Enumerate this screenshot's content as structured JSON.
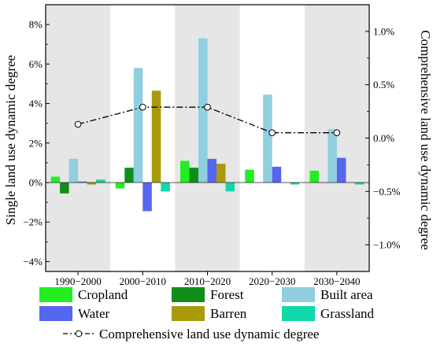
{
  "chart_data": {
    "type": "bar",
    "categories": [
      "1990−2000",
      "2000−2010",
      "2010−2020",
      "2020−2030",
      "2030−2040"
    ],
    "shaded_periods": [
      0,
      2,
      4
    ],
    "series": [
      {
        "name": "Cropland",
        "color": "#22ee22",
        "values": [
          0.3,
          -0.3,
          1.1,
          0.65,
          0.6
        ]
      },
      {
        "name": "Forest",
        "color": "#0f8f1a",
        "values": [
          -0.55,
          0.75,
          0.75,
          0.0,
          0.0
        ]
      },
      {
        "name": "Built area",
        "color": "#8fcfdf",
        "values": [
          1.2,
          5.8,
          7.3,
          4.45,
          2.7
        ]
      },
      {
        "name": "Water",
        "color": "#5566f0",
        "values": [
          0.05,
          -1.45,
          1.2,
          0.8,
          1.25
        ]
      },
      {
        "name": "Barren",
        "color": "#aa9a0a",
        "values": [
          -0.1,
          4.65,
          0.95,
          0.0,
          0.0
        ]
      },
      {
        "name": "Grassland",
        "color": "#10d8a8",
        "values": [
          0.15,
          -0.45,
          -0.45,
          -0.1,
          -0.1
        ]
      }
    ],
    "line_series": {
      "name": "Comprehensive land use dynamic degree",
      "values": [
        0.13,
        0.29,
        0.29,
        0.05,
        0.05
      ]
    },
    "ylabel": "Single land use dynamic degree",
    "ylabel_right": "Comprehensive land use dynamic degree",
    "ylim": [
      -4.5,
      9
    ],
    "ylim_right": [
      -1.25,
      1.25
    ],
    "yticks": [
      -4,
      -2,
      0,
      2,
      4,
      6,
      8
    ],
    "yticks_right": [
      -1.0,
      -0.5,
      0.0,
      0.5,
      1.0
    ],
    "ytick_labels": [
      "−4%",
      "−2%",
      "0%",
      "2%",
      "4%",
      "6%",
      "8%"
    ],
    "ytick_labels_right": [
      "−1.0%",
      "−0.5%",
      "0.0%",
      "0.5%",
      "1.0%"
    ],
    "grid": false,
    "legend_position": "bottom"
  }
}
